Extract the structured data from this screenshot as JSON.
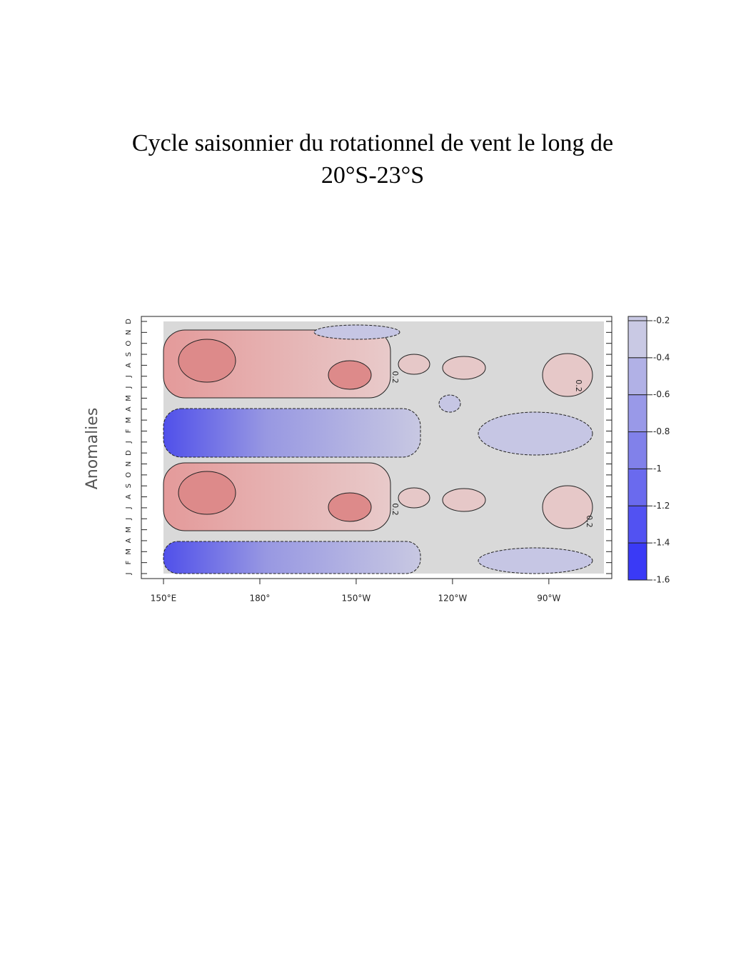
{
  "chart_data": {
    "type": "contour",
    "title": "Cycle saisonnier du rotationnel de vent le long de",
    "subtitle": "20°S-23°S",
    "y_label": "Anomalies",
    "categories": [
      "J",
      "F",
      "M",
      "A",
      "M",
      "J",
      "J",
      "A",
      "S",
      "O",
      "N",
      "D",
      "J",
      "F",
      "M",
      "A",
      "M",
      "J",
      "J",
      "A",
      "S",
      "O",
      "N",
      "D"
    ],
    "xlim": [
      143.1,
      289.6
    ],
    "xticks": [
      {
        "value": 150,
        "label": "150°E"
      },
      {
        "value": 180,
        "label": "180°"
      },
      {
        "value": 210,
        "label": "150°W"
      },
      {
        "value": 240,
        "label": "120°W"
      },
      {
        "value": 270,
        "label": "90°W"
      }
    ],
    "clim": [
      -1.6,
      -0.2
    ],
    "cticks": [
      -0.2,
      -0.4,
      -0.6,
      -0.8,
      -1,
      -1.2,
      -1.4,
      -1.6
    ],
    "colors": [
      "#c9c9e4",
      "#b1b1e6",
      "#9999e8",
      "#8181ea",
      "#6a6aee",
      "#5252f2",
      "#3a3af6"
    ],
    "contour_labels": [
      "0.2",
      "0.2",
      "0.2",
      "0.2"
    ]
  }
}
